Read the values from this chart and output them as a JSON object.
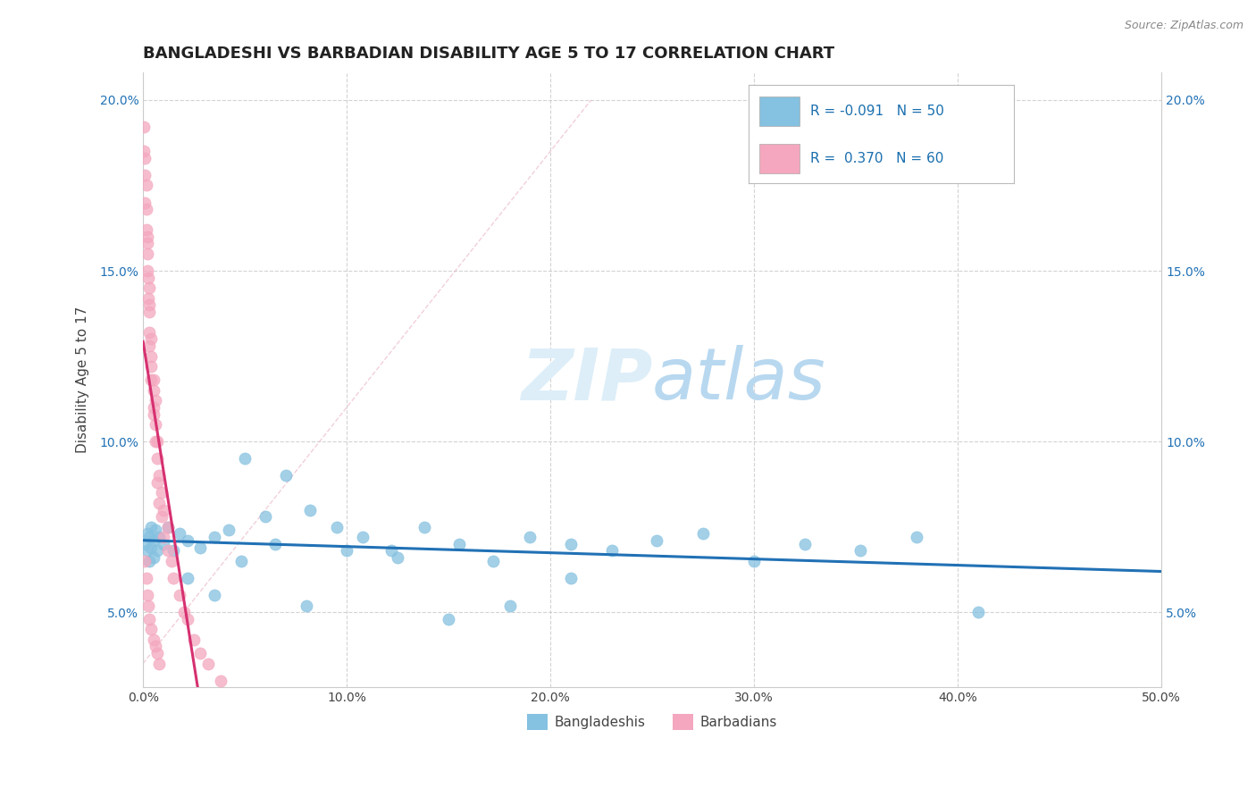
{
  "title": "BANGLADESHI VS BARBADIAN DISABILITY AGE 5 TO 17 CORRELATION CHART",
  "source_text": "Source: ZipAtlas.com",
  "ylabel": "Disability Age 5 to 17",
  "xlim": [
    0.0,
    0.5
  ],
  "ylim": [
    0.028,
    0.208
  ],
  "xticks": [
    0.0,
    0.1,
    0.2,
    0.3,
    0.4,
    0.5
  ],
  "yticks": [
    0.05,
    0.1,
    0.15,
    0.2
  ],
  "xtick_labels": [
    "0.0%",
    "10.0%",
    "20.0%",
    "30.0%",
    "40.0%",
    "50.0%"
  ],
  "ytick_labels": [
    "5.0%",
    "10.0%",
    "15.0%",
    "20.0%"
  ],
  "legend_bangladeshi": "Bangladeshis",
  "legend_barbadian": "Barbadians",
  "r_bangladeshi": -0.091,
  "n_bangladeshi": 50,
  "r_barbadian": 0.37,
  "n_barbadian": 60,
  "bangladeshi_color": "#85c1e0",
  "barbadian_color": "#f4a7be",
  "bangladeshi_line_color": "#2171b5",
  "barbadian_line_color": "#d63070",
  "background_color": "#ffffff",
  "grid_color": "#c8c8c8",
  "watermark_color": "#ddeef8",
  "title_fontsize": 13,
  "axis_label_fontsize": 11,
  "tick_fontsize": 10,
  "bangladeshi_x": [
    0.001,
    0.002,
    0.002,
    0.003,
    0.003,
    0.004,
    0.004,
    0.005,
    0.005,
    0.006,
    0.007,
    0.008,
    0.01,
    0.012,
    0.015,
    0.018,
    0.022,
    0.028,
    0.035,
    0.042,
    0.05,
    0.06,
    0.07,
    0.082,
    0.095,
    0.108,
    0.122,
    0.138,
    0.155,
    0.172,
    0.19,
    0.21,
    0.23,
    0.252,
    0.275,
    0.3,
    0.325,
    0.352,
    0.38,
    0.41,
    0.022,
    0.035,
    0.048,
    0.065,
    0.08,
    0.1,
    0.125,
    0.15,
    0.18,
    0.21
  ],
  "bangladeshi_y": [
    0.07,
    0.073,
    0.068,
    0.072,
    0.065,
    0.075,
    0.069,
    0.071,
    0.066,
    0.074,
    0.068,
    0.072,
    0.07,
    0.075,
    0.068,
    0.073,
    0.071,
    0.069,
    0.072,
    0.074,
    0.095,
    0.078,
    0.09,
    0.08,
    0.075,
    0.072,
    0.068,
    0.075,
    0.07,
    0.065,
    0.072,
    0.07,
    0.068,
    0.071,
    0.073,
    0.065,
    0.07,
    0.068,
    0.072,
    0.05,
    0.06,
    0.055,
    0.065,
    0.07,
    0.052,
    0.068,
    0.066,
    0.048,
    0.052,
    0.06
  ],
  "barbadian_x": [
    0.0005,
    0.0005,
    0.001,
    0.001,
    0.001,
    0.0015,
    0.0015,
    0.0015,
    0.002,
    0.002,
    0.002,
    0.002,
    0.0025,
    0.0025,
    0.003,
    0.003,
    0.003,
    0.003,
    0.003,
    0.004,
    0.004,
    0.004,
    0.004,
    0.005,
    0.005,
    0.005,
    0.005,
    0.006,
    0.006,
    0.006,
    0.007,
    0.007,
    0.007,
    0.008,
    0.008,
    0.009,
    0.009,
    0.01,
    0.01,
    0.012,
    0.012,
    0.014,
    0.015,
    0.018,
    0.02,
    0.022,
    0.025,
    0.028,
    0.032,
    0.038,
    0.001,
    0.0015,
    0.002,
    0.0025,
    0.003,
    0.004,
    0.005,
    0.006,
    0.007,
    0.008
  ],
  "barbadian_y": [
    0.185,
    0.192,
    0.178,
    0.183,
    0.17,
    0.175,
    0.168,
    0.162,
    0.16,
    0.155,
    0.15,
    0.158,
    0.148,
    0.142,
    0.145,
    0.138,
    0.132,
    0.128,
    0.14,
    0.125,
    0.118,
    0.122,
    0.13,
    0.115,
    0.11,
    0.118,
    0.108,
    0.105,
    0.1,
    0.112,
    0.095,
    0.1,
    0.088,
    0.09,
    0.082,
    0.085,
    0.078,
    0.08,
    0.072,
    0.068,
    0.075,
    0.065,
    0.06,
    0.055,
    0.05,
    0.048,
    0.042,
    0.038,
    0.035,
    0.03,
    0.065,
    0.06,
    0.055,
    0.052,
    0.048,
    0.045,
    0.042,
    0.04,
    0.038,
    0.035
  ]
}
